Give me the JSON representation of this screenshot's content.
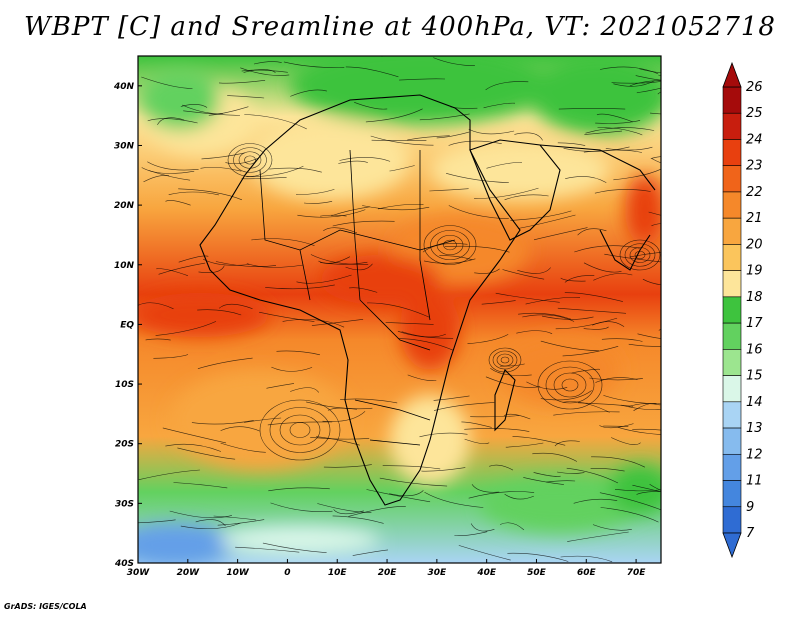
{
  "title": "WBPT [C] and Sreamline at 400hPa, VT: 2021052718",
  "credit": "GrADS: IGES/COLA",
  "map": {
    "lon_ticks": [
      "30W",
      "20W",
      "10W",
      "0",
      "10E",
      "20E",
      "30E",
      "40E",
      "50E",
      "60E",
      "70E"
    ],
    "lat_ticks": [
      "40N",
      "30N",
      "20N",
      "10N",
      "EQ",
      "10S",
      "20S",
      "30S",
      "40S"
    ],
    "lon_range": [
      -30,
      75
    ],
    "lat_range": [
      -40,
      45
    ]
  },
  "colorbar": {
    "labels": [
      "26",
      "25",
      "24",
      "23",
      "22",
      "21",
      "20",
      "19",
      "18",
      "17",
      "16",
      "15",
      "14",
      "13",
      "12",
      "11",
      "9",
      "7"
    ],
    "colors": [
      "#a50b0b",
      "#c81e0e",
      "#e8400f",
      "#f0641a",
      "#f5882a",
      "#f8a63f",
      "#fbc55c",
      "#fde59a",
      "#3ec33e",
      "#62d15f",
      "#9ce58f",
      "#daf7e8",
      "#a9d4f4",
      "#86bbee",
      "#639fe8",
      "#4486de",
      "#2f6cd3"
    ]
  }
}
